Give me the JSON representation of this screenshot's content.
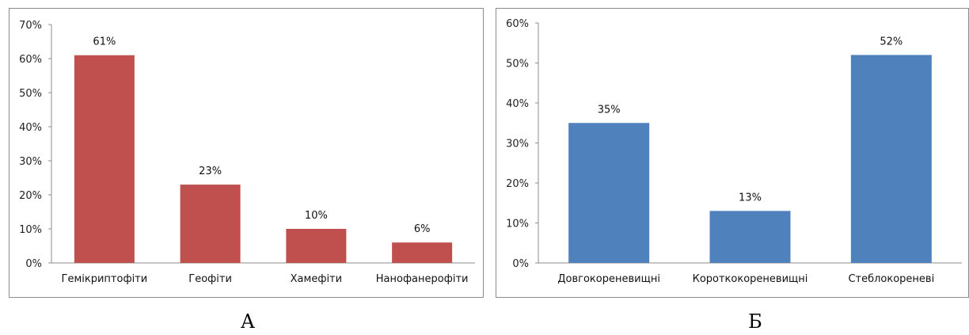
{
  "chart_data": [
    {
      "type": "bar",
      "categories": [
        "Гемікриптофіти",
        "Геофіти",
        "Хамефіти",
        "Нанофанерофіти"
      ],
      "values": [
        61,
        23,
        10,
        6
      ],
      "data_labels": [
        "61%",
        "23%",
        "10%",
        "6%"
      ],
      "ylim": [
        0,
        70
      ],
      "yticks": [
        "0%",
        "10%",
        "20%",
        "30%",
        "40%",
        "50%",
        "60%",
        "70%"
      ],
      "color": "#c0504d",
      "grid": false,
      "legend": "none",
      "caption": "А"
    },
    {
      "type": "bar",
      "categories": [
        "Довгокореневищні",
        "Короткокореневищні",
        "Стеблокореневі"
      ],
      "values": [
        35,
        13,
        52
      ],
      "data_labels": [
        "35%",
        "13%",
        "52%"
      ],
      "ylim": [
        0,
        60
      ],
      "yticks": [
        "0%",
        "10%",
        "20%",
        "30%",
        "40%",
        "50%",
        "60%"
      ],
      "color": "#4f81bd",
      "grid": false,
      "legend": "none",
      "caption": "Б"
    }
  ]
}
